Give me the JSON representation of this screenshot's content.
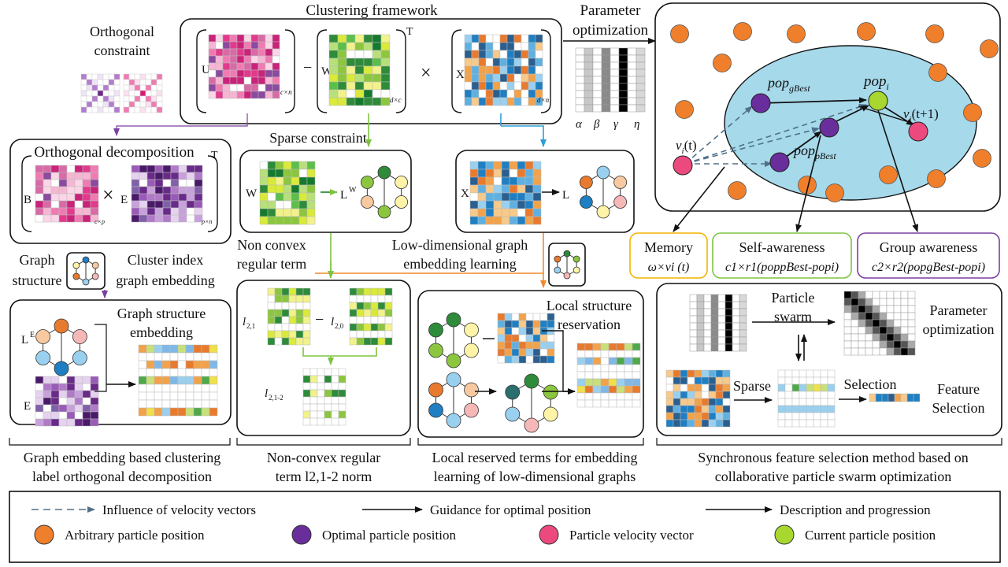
{
  "palettes": {
    "pink": [
      "#e23a8c",
      "#f07bb2",
      "#f6b6d3",
      "#c9237a",
      "#fbd6e7",
      "#8a4a9e",
      "#ffffff",
      "#d86aa6"
    ],
    "green": [
      "#2e8b3a",
      "#8cc63f",
      "#d9ea3a",
      "#f2f28a",
      "#5bbf4a",
      "#ffffff",
      "#b8e07a",
      "#167a2e"
    ],
    "blue": [
      "#1f7fc2",
      "#f2a24a",
      "#9ad0ef",
      "#ffffff",
      "#e87a2e",
      "#5fb0e0",
      "#f7c98a",
      "#2a5f8f"
    ],
    "purple": [
      "#6a2a8a",
      "#9a5ab8",
      "#c8a0dc",
      "#e6d2f0",
      "#4a1a6a",
      "#b07ac8",
      "#ffffff",
      "#8060a8"
    ],
    "mixed": [
      "#f2a24a",
      "#7fb8e6",
      "#4fa84a",
      "#f0e04a",
      "#9ad0ef",
      "#e87a2e",
      "#ffffff",
      "#c8e07a"
    ],
    "node_colors": [
      "#2e8b3a",
      "#8cc63f",
      "#fff3a8",
      "#f6b7b7",
      "#9ad0ef",
      "#f8c9a0",
      "#1f7fc2",
      "#2a6e6e",
      "#e87a2e"
    ]
  },
  "legend_colors": {
    "arbitrary": "#f07f2b",
    "optimal": "#6a2d9c",
    "velocity": "#ec4a7f",
    "current": "#a8d830",
    "swarm_bg": "#a6d9ea",
    "memory_border": "#f4b400",
    "self_border": "#7fc342",
    "group_border": "#7b3fa0",
    "green_arrow": "#7fc342",
    "blue_arrow": "#2a9fd8",
    "purple_arrow": "#7b3fa0",
    "orange_arrow": "#ef8a2c"
  },
  "top": {
    "title": "Clustering framework",
    "U": "U",
    "W": "W",
    "X": "X",
    "T": "T",
    "minus": "−",
    "times": "×",
    "sub_cn": "c×n",
    "sub_dc": "d×c",
    "sub_dn": "d×n",
    "param_label": "Parameter",
    "param_label2": "optimization",
    "greek": [
      "α",
      "β",
      "γ",
      "η"
    ]
  },
  "orth": {
    "constraint": "Orthogonal",
    "constraint2": "constraint",
    "decomp_title": "Orthogonal decomposition",
    "B": "B",
    "E": "E",
    "times": "×",
    "T": "T",
    "sub_cp": "c×p",
    "sub_pn": "p×n"
  },
  "sparse": {
    "title": "Sparse constraint",
    "W": "W",
    "LW": "L",
    "LW_sup": "W",
    "X": "X",
    "L": "L"
  },
  "labels": {
    "nonconvex1": "Non convex",
    "nonconvex2": "regular term",
    "lowdim1": "Low-dimensional graph",
    "lowdim2": "embedding learning",
    "graph1": "Graph",
    "graph2": "structure",
    "cluster1": "Cluster index",
    "cluster2": "graph embedding"
  },
  "gse": {
    "title1": "Graph structure",
    "title2": "embedding",
    "LE": "L",
    "LE_sup": "E",
    "E": "E"
  },
  "norm": {
    "l21": "l",
    "l21_sub": "2,1",
    "l20": "l",
    "l20_sub": "2,0",
    "minus": "−",
    "l212": "l",
    "l212_sub": "2,1-2"
  },
  "local": {
    "title1": "Local structure",
    "title2": "reservation"
  },
  "swarm": {
    "pop_gbest": "pop",
    "pop_gbest_sub": "gBest",
    "pop_pbest": "pop",
    "pop_pbest_sub": "pBest",
    "pop_i": "pop",
    "pop_i_sub": "i",
    "v_t": "v",
    "v_t_sub": "i",
    "v_t_arg": "(t)",
    "v_t1": "v",
    "v_t1_sub": "i",
    "v_t1_arg": "(t+1)"
  },
  "terms": {
    "memory_title": "Memory",
    "memory_formula": "ω×vi (t)",
    "self_title": "Self-awareness",
    "self_formula": "c1×r1(poppBest-popi)",
    "group_title": "Group awareness",
    "group_formula": "c2×r2(popgBest-popi)"
  },
  "pso_box": {
    "particle1": "Particle",
    "particle2": "swarm",
    "param1": "Parameter",
    "param2": "optimization",
    "sparse": "Sparse",
    "selection": "Selection",
    "feature1": "Feature",
    "feature2": "Selection"
  },
  "captions": {
    "c1a": "Graph embedding based clustering",
    "c1b": "label orthogonal decomposition",
    "c2a": "Non-convex regular",
    "c2b": "term l2,1-2 norm",
    "c3a": "Local reserved terms for embedding",
    "c3b": "learning of low-dimensional graphs",
    "c4a": "Synchronous feature selection method based on",
    "c4b": "collaborative particle swarm optimization"
  },
  "legend": {
    "influence": "Influence of velocity vectors",
    "guidance": "Guidance for optimal position",
    "description": "Description and progression",
    "arbitrary": "Arbitrary particle position",
    "optimal": "Optimal particle position",
    "velocity": "Particle velocity vector",
    "current": "Current particle position"
  }
}
